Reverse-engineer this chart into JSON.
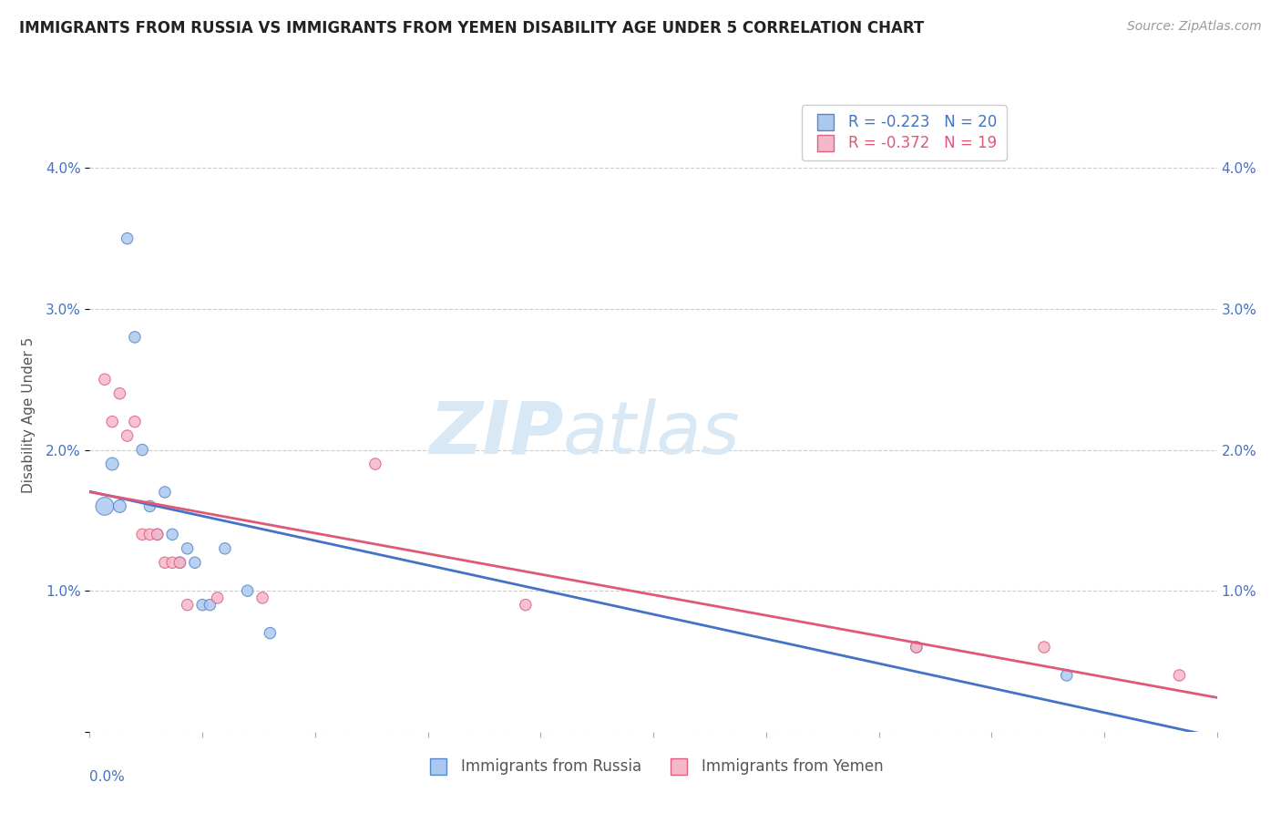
{
  "title": "IMMIGRANTS FROM RUSSIA VS IMMIGRANTS FROM YEMEN DISABILITY AGE UNDER 5 CORRELATION CHART",
  "source": "Source: ZipAtlas.com",
  "ylabel": "Disability Age Under 5",
  "xlim": [
    0.0,
    0.15
  ],
  "ylim": [
    0.0,
    0.045
  ],
  "ytick_pos": [
    0.0,
    0.01,
    0.02,
    0.03,
    0.04
  ],
  "ytick_labels": [
    "",
    "1.0%",
    "2.0%",
    "3.0%",
    "4.0%"
  ],
  "legend_r_russia": "R = -0.223",
  "legend_n_russia": "N = 20",
  "legend_r_yemen": "R = -0.372",
  "legend_n_yemen": "N = 19",
  "russia_color": "#adc8ee",
  "russia_edge_color": "#5588cc",
  "yemen_color": "#f5b8ca",
  "yemen_edge_color": "#e06080",
  "trendline_russia_color": "#4472c4",
  "trendline_yemen_color": "#e05878",
  "watermark_color": "#d8e8f5",
  "background_color": "#ffffff",
  "grid_color": "#cccccc",
  "russia_x": [
    0.002,
    0.003,
    0.004,
    0.005,
    0.006,
    0.007,
    0.008,
    0.009,
    0.01,
    0.011,
    0.012,
    0.013,
    0.014,
    0.015,
    0.016,
    0.018,
    0.021,
    0.024,
    0.11,
    0.13
  ],
  "russia_y": [
    0.016,
    0.019,
    0.016,
    0.035,
    0.028,
    0.02,
    0.016,
    0.014,
    0.017,
    0.014,
    0.012,
    0.013,
    0.012,
    0.009,
    0.009,
    0.013,
    0.01,
    0.007,
    0.006,
    0.004
  ],
  "russia_size": [
    200,
    100,
    100,
    80,
    80,
    80,
    80,
    80,
    80,
    80,
    80,
    80,
    80,
    80,
    80,
    80,
    80,
    80,
    80,
    80
  ],
  "yemen_x": [
    0.002,
    0.003,
    0.004,
    0.005,
    0.006,
    0.007,
    0.008,
    0.009,
    0.01,
    0.011,
    0.012,
    0.013,
    0.017,
    0.023,
    0.038,
    0.058,
    0.11,
    0.127,
    0.145
  ],
  "yemen_y": [
    0.025,
    0.022,
    0.024,
    0.021,
    0.022,
    0.014,
    0.014,
    0.014,
    0.012,
    0.012,
    0.012,
    0.009,
    0.0095,
    0.0095,
    0.019,
    0.009,
    0.006,
    0.006,
    0.004
  ],
  "yemen_size": [
    80,
    80,
    80,
    80,
    80,
    80,
    80,
    80,
    80,
    80,
    80,
    80,
    80,
    80,
    80,
    80,
    80,
    80,
    80
  ]
}
